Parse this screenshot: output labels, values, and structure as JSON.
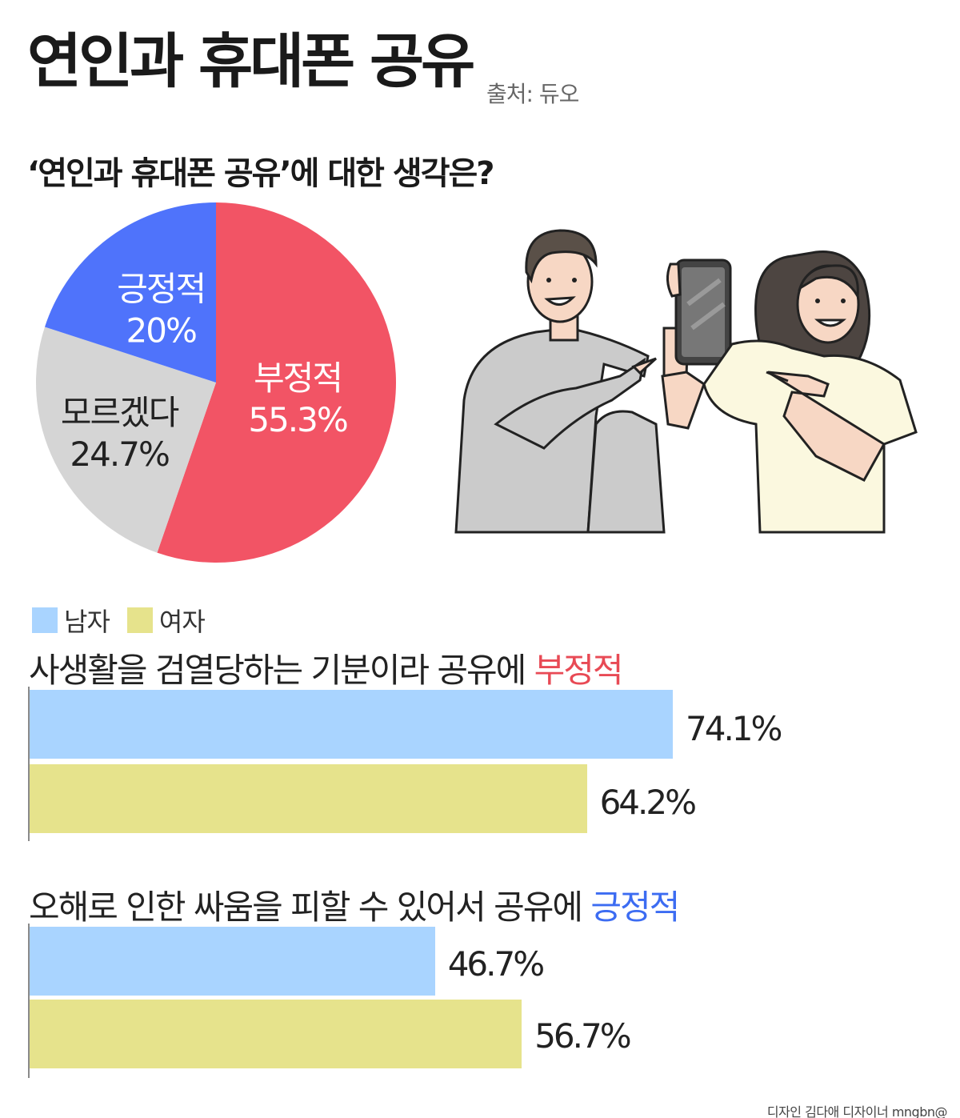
{
  "header": {
    "title": "연인과 휴대폰 공유",
    "source": "출처: 듀오",
    "subtitle": "‘연인과 휴대폰 공유’에 대한 생각은?"
  },
  "legend": {
    "male": "남자",
    "female": "여자"
  },
  "questions": [
    {
      "title_main": "사생활을 검열당하는 기분이라 공유에 ",
      "title_highlight": "부정적"
    },
    {
      "title_main": "오해로 인한 싸움을 피할 수 있어서 공유에 ",
      "title_highlight": "긍정적"
    }
  ],
  "colors": {
    "negative": "#f25465",
    "positive": "#4f73fb",
    "unknown": "#d5d5d5",
    "male": "#a9d4ff",
    "female": "#e6e38c",
    "neg_text": "#e84a55",
    "pos_text": "#3c6cf2"
  },
  "credit": "디자인 김다애 디자이너 mngbn@",
  "chart_data": [
    {
      "type": "pie",
      "slices": [
        {
          "label": "부정적",
          "value": 55.3,
          "display": "55.3%"
        },
        {
          "label": "모르겠다",
          "value": 24.7,
          "display": "24.7%"
        },
        {
          "label": "긍정적",
          "value": 20,
          "display": "20%"
        }
      ]
    },
    {
      "type": "bar",
      "orientation": "horizontal",
      "categories": [
        "사생활을 검열당하는 기분이라 공유에 부정적"
      ],
      "series": [
        {
          "name": "남자",
          "values": [
            74.1
          ],
          "display": [
            "74.1%"
          ]
        },
        {
          "name": "여자",
          "values": [
            64.2
          ],
          "display": [
            "64.2%"
          ]
        }
      ]
    },
    {
      "type": "bar",
      "orientation": "horizontal",
      "categories": [
        "오해로 인한 싸움을 피할 수 있어서 공유에 긍정적"
      ],
      "series": [
        {
          "name": "남자",
          "values": [
            46.7
          ],
          "display": [
            "46.7%"
          ]
        },
        {
          "name": "여자",
          "values": [
            56.7
          ],
          "display": [
            "56.7%"
          ]
        }
      ]
    }
  ]
}
